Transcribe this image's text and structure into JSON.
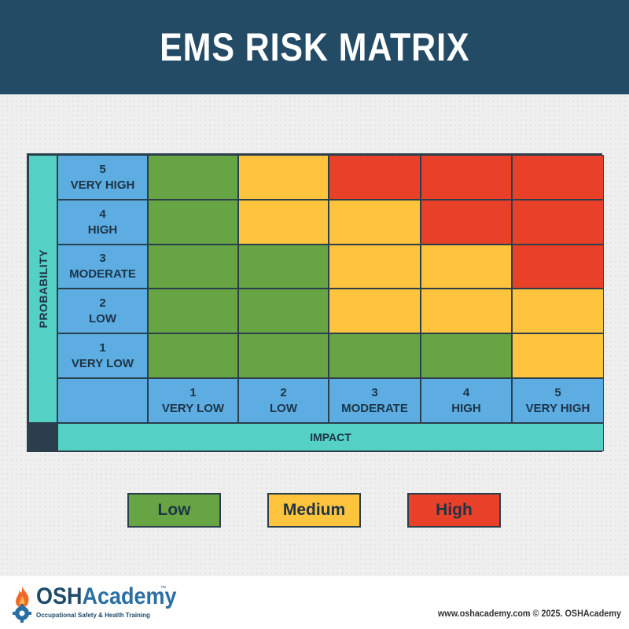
{
  "header": {
    "title": "EMS RISK MATRIX"
  },
  "colors": {
    "header_bg": "#244b66",
    "low": "#67a544",
    "medium": "#ffc43d",
    "high": "#e9402a",
    "axis_label_bg": "#5dade2",
    "axis_title_bg": "#54d0c4"
  },
  "matrix": {
    "probability_title": "PROBABILITY",
    "impact_title": "IMPACT",
    "probability_levels": [
      {
        "num": "5",
        "label": "VERY HIGH"
      },
      {
        "num": "4",
        "label": "HIGH"
      },
      {
        "num": "3",
        "label": "MODERATE"
      },
      {
        "num": "2",
        "label": "LOW"
      },
      {
        "num": "1",
        "label": "VERY LOW"
      }
    ],
    "impact_levels": [
      {
        "num": "1",
        "label": "VERY LOW"
      },
      {
        "num": "2",
        "label": "LOW"
      },
      {
        "num": "3",
        "label": "MODERATE"
      },
      {
        "num": "4",
        "label": "HIGH"
      },
      {
        "num": "5",
        "label": "VERY HIGH"
      }
    ],
    "cells": [
      [
        "low",
        "medium",
        "high",
        "high",
        "high"
      ],
      [
        "low",
        "medium",
        "medium",
        "high",
        "high"
      ],
      [
        "low",
        "low",
        "medium",
        "medium",
        "high"
      ],
      [
        "low",
        "low",
        "medium",
        "medium",
        "medium"
      ],
      [
        "low",
        "low",
        "low",
        "low",
        "medium"
      ]
    ]
  },
  "legend": {
    "low": "Low",
    "medium": "Medium",
    "high": "High"
  },
  "footer": {
    "logo_osh": "OSH",
    "logo_academy": "Academy",
    "logo_tm": "™",
    "logo_tagline": "Occupational Safety & Health Training",
    "copyright": "www.oshacademy.com © 2025. OSHAcademy"
  }
}
